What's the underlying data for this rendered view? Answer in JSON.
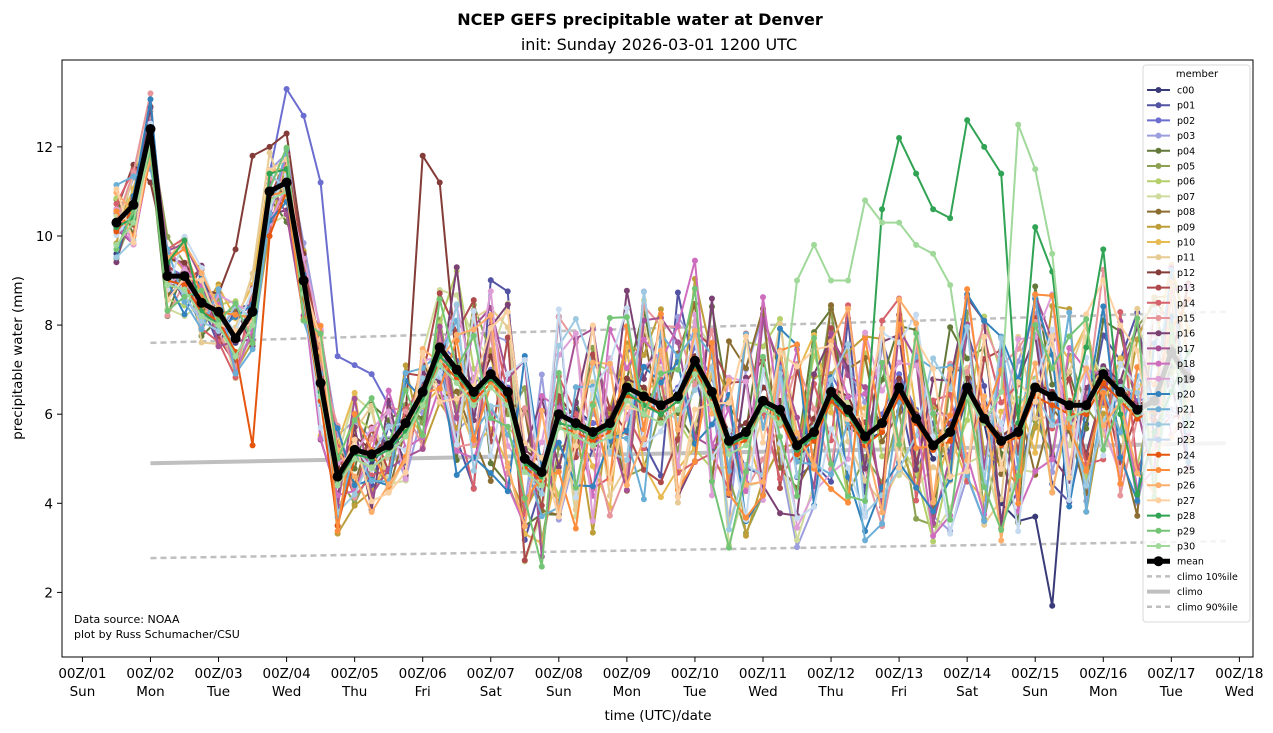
{
  "chart_data": {
    "type": "line",
    "title": "NCEP GEFS precipitable water at Denver",
    "subtitle": "init: Sunday 2026-03-01 1200 UTC",
    "xlabel": "time (UTC)/date",
    "ylabel": "precipitable water (mm)",
    "x_unit": "days since 00Z/01",
    "xlim": [
      -0.3,
      17.2
    ],
    "ylim": [
      0.55,
      13.95
    ],
    "x_ticks": [
      {
        "value": 0,
        "label": "00Z/01",
        "day": "Sun"
      },
      {
        "value": 1,
        "label": "00Z/02",
        "day": "Mon"
      },
      {
        "value": 2,
        "label": "00Z/03",
        "day": "Tue"
      },
      {
        "value": 3,
        "label": "00Z/04",
        "day": "Wed"
      },
      {
        "value": 4,
        "label": "00Z/05",
        "day": "Thu"
      },
      {
        "value": 5,
        "label": "00Z/06",
        "day": "Fri"
      },
      {
        "value": 6,
        "label": "00Z/07",
        "day": "Sat"
      },
      {
        "value": 7,
        "label": "00Z/08",
        "day": "Sun"
      },
      {
        "value": 8,
        "label": "00Z/09",
        "day": "Mon"
      },
      {
        "value": 9,
        "label": "00Z/10",
        "day": "Tue"
      },
      {
        "value": 10,
        "label": "00Z/11",
        "day": "Wed"
      },
      {
        "value": 11,
        "label": "00Z/12",
        "day": "Thu"
      },
      {
        "value": 12,
        "label": "00Z/13",
        "day": "Fri"
      },
      {
        "value": 13,
        "label": "00Z/14",
        "day": "Sat"
      },
      {
        "value": 14,
        "label": "00Z/15",
        "day": "Sun"
      },
      {
        "value": 15,
        "label": "00Z/16",
        "day": "Mon"
      },
      {
        "value": 16,
        "label": "00Z/17",
        "day": "Tue"
      },
      {
        "value": 17,
        "label": "00Z/18",
        "day": "Wed"
      }
    ],
    "y_ticks": [
      2,
      4,
      6,
      8,
      10,
      12
    ],
    "grid": false,
    "legend": {
      "title": "member",
      "placement": "right",
      "entries": [
        "c00",
        "p01",
        "p02",
        "p03",
        "p04",
        "p05",
        "p06",
        "p07",
        "p08",
        "p09",
        "p10",
        "p11",
        "p12",
        "p13",
        "p14",
        "p15",
        "p16",
        "p17",
        "p18",
        "p19",
        "p20",
        "p21",
        "p22",
        "p23",
        "p24",
        "p25",
        "p26",
        "p27",
        "p28",
        "p29",
        "p30",
        "mean",
        "climo 10%ile",
        "climo",
        "climo 90%ile"
      ]
    },
    "time_start": 0.5,
    "time_step": 0.25,
    "member_colors": [
      "#393b79",
      "#5254a3",
      "#6b6ecf",
      "#9c9ede",
      "#637939",
      "#8ca252",
      "#b5cf6b",
      "#cedb9c",
      "#8c6d31",
      "#bd9e39",
      "#e7ba52",
      "#e7cb94",
      "#843c39",
      "#ad494a",
      "#d6616b",
      "#e7969c",
      "#7b4173",
      "#a55194",
      "#ce6dbd",
      "#de9ed6",
      "#3182bd",
      "#6baed6",
      "#9ecae1",
      "#c6dbef",
      "#e6550d",
      "#fd8d3c",
      "#fdae6b",
      "#fdd0a2",
      "#31a354",
      "#74c476",
      "#a1d99b"
    ],
    "mean": {
      "name": "mean",
      "color": "#000000",
      "values": [
        10.3,
        10.7,
        12.4,
        9.1,
        9.1,
        8.5,
        8.3,
        7.7,
        8.3,
        11.0,
        11.2,
        9.0,
        6.7,
        4.6,
        5.2,
        5.1,
        5.3,
        5.8,
        6.5,
        7.5,
        7.0,
        6.5,
        6.9,
        6.5,
        5.0,
        4.7,
        6.0,
        5.8,
        5.6,
        5.8,
        6.6,
        6.4,
        6.2,
        6.4,
        7.2,
        6.5,
        5.4,
        5.6,
        6.3,
        6.1,
        5.3,
        5.6,
        6.5,
        6.1,
        5.5,
        5.8,
        6.6,
        5.9,
        5.3,
        5.6,
        6.6,
        5.9,
        5.4,
        5.6,
        6.6,
        6.4,
        6.2,
        6.2,
        6.9,
        6.5,
        6.1,
        6.3,
        7.4,
        6.8
      ]
    },
    "members": [
      {
        "name": "c00",
        "values": [
          9.6,
          10.4,
          12.2,
          9.0,
          9.0,
          8.4,
          8.3,
          7.6,
          8.4,
          11.0,
          11.0,
          9.0,
          6.5,
          4.6,
          5.2,
          4.9,
          5.3,
          5.8,
          6.5,
          7.4,
          6.9,
          6.6,
          6.8,
          6.4,
          4.8,
          4.6,
          5.9,
          6.1,
          5.8,
          5.9,
          6.4,
          6.3,
          6.0,
          6.5,
          7.3,
          6.3,
          5.2,
          5.6,
          6.0,
          6.2,
          5.0,
          5.5,
          6.3,
          6.0,
          5.4,
          5.6,
          6.4,
          5.8,
          5.0,
          5.1,
          6.4,
          5.8,
          4.0,
          3.6,
          3.7,
          1.7,
          6.3,
          5.1,
          6.6,
          6.4,
          6.0,
          6.0,
          7.2,
          6.6
        ]
      },
      {
        "name": "p02",
        "values": [
          10.5,
          10.8,
          12.5,
          9.3,
          9.1,
          8.5,
          8.3,
          7.7,
          8.5,
          11.4,
          13.3,
          12.7,
          11.2,
          7.3,
          7.1,
          6.9,
          6.2,
          5.7,
          6.4,
          7.6,
          7.2,
          6.7,
          7.0,
          6.6,
          5.0,
          4.8,
          6.2,
          6.0,
          5.8,
          5.7,
          6.8,
          6.5,
          6.3,
          6.6,
          7.5,
          6.8,
          5.5,
          5.8,
          6.6,
          6.3,
          5.5,
          5.7,
          6.9,
          6.2,
          5.6,
          6.0,
          6.9,
          6.1,
          5.5,
          5.8,
          6.9,
          6.0,
          5.5,
          5.7,
          6.8,
          6.5,
          6.2,
          6.3,
          7.0,
          6.7,
          6.3,
          6.4,
          7.6,
          7.0
        ]
      },
      {
        "name": "p12",
        "values": [
          10.6,
          11.6,
          11.2,
          9.5,
          9.4,
          8.8,
          8.7,
          9.7,
          11.8,
          12.0,
          12.3,
          9.6,
          6.9,
          4.8,
          5.5,
          5.2,
          5.4,
          6.0,
          11.8,
          11.2,
          7.1,
          6.3,
          7.3,
          6.3,
          5.2,
          4.9,
          6.4,
          5.9,
          5.6,
          5.9,
          6.8,
          6.6,
          6.2,
          6.4,
          7.3,
          6.5,
          5.6,
          5.8,
          6.6,
          6.3,
          5.3,
          5.9,
          6.6,
          6.4,
          5.6,
          5.8,
          6.8,
          6.0,
          5.4,
          5.6,
          6.8,
          6.0,
          5.5,
          5.8,
          6.7,
          6.5,
          6.3,
          6.3,
          7.0,
          6.6,
          6.2,
          6.4,
          7.5,
          6.9
        ]
      },
      {
        "name": "p24",
        "values": [
          10.1,
          10.6,
          12.2,
          9.0,
          8.9,
          8.3,
          8.1,
          7.4,
          5.3,
          10.0,
          11.0,
          8.6,
          6.3,
          3.5,
          5.0,
          4.8,
          5.1,
          5.5,
          6.2,
          7.2,
          6.8,
          6.3,
          6.7,
          6.3,
          4.8,
          4.5,
          5.7,
          5.6,
          5.4,
          5.6,
          6.4,
          6.3,
          6.0,
          6.3,
          7.0,
          6.3,
          5.3,
          5.4,
          6.2,
          5.9,
          5.1,
          5.4,
          6.3,
          5.9,
          5.3,
          5.6,
          6.4,
          5.8,
          5.2,
          5.4,
          6.4,
          5.8,
          5.3,
          5.5,
          6.4,
          6.2,
          6.0,
          6.0,
          6.7,
          6.3,
          5.9,
          6.1,
          7.2,
          6.6
        ]
      },
      {
        "name": "p28",
        "values": [
          10.2,
          10.4,
          12.0,
          9.4,
          9.9,
          8.3,
          8.0,
          7.3,
          8.0,
          11.4,
          11.5,
          8.8,
          6.5,
          4.5,
          5.1,
          5.0,
          5.2,
          5.6,
          6.3,
          7.3,
          6.9,
          6.4,
          6.8,
          6.4,
          4.9,
          4.6,
          5.8,
          5.7,
          5.5,
          5.7,
          6.5,
          6.2,
          6.0,
          6.3,
          7.1,
          6.4,
          5.3,
          5.5,
          6.2,
          6.0,
          5.2,
          5.5,
          6.4,
          6.0,
          5.4,
          10.6,
          12.2,
          11.4,
          10.6,
          10.4,
          12.6,
          12.0,
          11.4,
          5.8,
          10.2,
          9.2,
          5.9,
          7.5,
          9.7,
          6.0,
          4.2,
          5.6,
          6.5,
          7.4
        ]
      },
      {
        "name": "p30",
        "values": [
          9.8,
          10.3,
          12.1,
          8.9,
          8.8,
          8.2,
          8.0,
          7.3,
          8.0,
          10.8,
          11.0,
          8.7,
          6.4,
          4.4,
          5.0,
          4.8,
          5.1,
          5.5,
          6.2,
          7.1,
          6.7,
          6.2,
          6.6,
          6.2,
          4.7,
          4.4,
          5.7,
          5.5,
          5.3,
          5.5,
          6.3,
          6.0,
          5.8,
          6.1,
          6.9,
          6.2,
          5.1,
          5.3,
          6.1,
          5.8,
          9.0,
          9.8,
          9.0,
          9.0,
          10.8,
          10.3,
          10.3,
          9.8,
          9.6,
          8.9,
          6.4,
          5.8,
          6.5,
          12.5,
          11.5,
          9.6,
          5.9,
          6.1,
          7.0,
          6.4,
          6.0,
          6.2,
          7.2,
          6.6
        ]
      }
    ],
    "climo": {
      "x": [
        1,
        16.8
      ],
      "values": [
        4.9,
        5.35
      ],
      "color": "#bfbfbf"
    },
    "climo_10": {
      "x": [
        1,
        16.8
      ],
      "values": [
        2.77,
        3.15
      ],
      "color": "#bfbfbf"
    },
    "climo_90": {
      "x": [
        1,
        16.8
      ],
      "values": [
        7.6,
        8.3
      ],
      "color": "#bfbfbf"
    },
    "annotation": [
      "Data source: NOAA",
      "plot by Russ Schumacher/CSU"
    ]
  }
}
